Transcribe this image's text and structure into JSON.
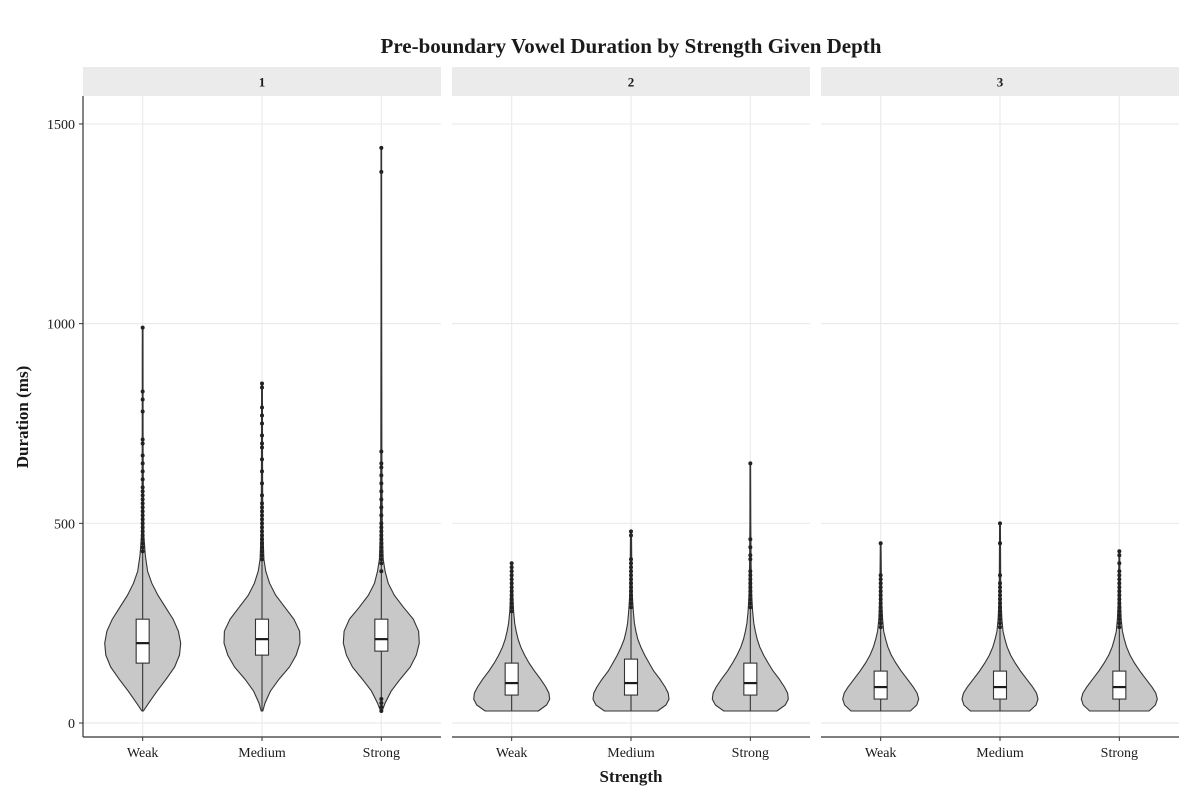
{
  "chart_data": {
    "type": "violin",
    "title": "Pre-boundary Vowel Duration by Strength Given Depth",
    "xlabel": "Strength",
    "ylabel": "Duration (ms)",
    "categories": [
      "Weak",
      "Medium",
      "Strong"
    ],
    "ylim": [
      -35,
      1570
    ],
    "yticks": [
      0,
      500,
      1000,
      1500
    ],
    "grid": true,
    "colors": {
      "violin_fill": "#c8c8c8",
      "outline": "#333333",
      "box_fill": "#ffffff",
      "strip": "#ebebeb",
      "grid": "#ebebeb"
    },
    "facets": [
      {
        "label": "1",
        "groups": [
          {
            "category": "Weak",
            "min": 30,
            "q1": 150,
            "median": 200,
            "q3": 260,
            "whisker_high": 420,
            "max": 990,
            "density": [
              [
                30,
                0.02
              ],
              [
                50,
                0.16
              ],
              [
                80,
                0.38
              ],
              [
                110,
                0.62
              ],
              [
                140,
                0.84
              ],
              [
                170,
                0.97
              ],
              [
                200,
                1.0
              ],
              [
                230,
                0.94
              ],
              [
                260,
                0.8
              ],
              [
                290,
                0.6
              ],
              [
                320,
                0.4
              ],
              [
                350,
                0.24
              ],
              [
                380,
                0.13
              ],
              [
                420,
                0.07
              ],
              [
                470,
                0.03
              ],
              [
                550,
                0.018
              ],
              [
                700,
                0.012
              ],
              [
                990,
                0.01
              ]
            ],
            "outliers": [
              430,
              440,
              450,
              460,
              470,
              480,
              490,
              500,
              510,
              520,
              530,
              540,
              550,
              560,
              570,
              580,
              590,
              610,
              630,
              650,
              670,
              700,
              710,
              780,
              810,
              830,
              990
            ]
          },
          {
            "category": "Medium",
            "min": 30,
            "q1": 170,
            "median": 210,
            "q3": 260,
            "whisker_high": 400,
            "max": 850,
            "density": [
              [
                30,
                0.02
              ],
              [
                50,
                0.08
              ],
              [
                80,
                0.22
              ],
              [
                110,
                0.45
              ],
              [
                140,
                0.72
              ],
              [
                170,
                0.9
              ],
              [
                200,
                1.0
              ],
              [
                230,
                0.99
              ],
              [
                260,
                0.84
              ],
              [
                290,
                0.6
              ],
              [
                320,
                0.36
              ],
              [
                350,
                0.2
              ],
              [
                380,
                0.1
              ],
              [
                410,
                0.05
              ],
              [
                480,
                0.025
              ],
              [
                600,
                0.015
              ],
              [
                850,
                0.01
              ]
            ],
            "outliers": [
              410,
              420,
              430,
              440,
              450,
              460,
              470,
              480,
              490,
              500,
              510,
              520,
              530,
              540,
              550,
              570,
              600,
              630,
              660,
              690,
              700,
              720,
              750,
              770,
              790,
              840,
              850
            ]
          },
          {
            "category": "Strong",
            "min": 30,
            "q1": 180,
            "median": 210,
            "q3": 260,
            "whisker_high": 390,
            "max": 1440,
            "density": [
              [
                30,
                0.02
              ],
              [
                50,
                0.1
              ],
              [
                80,
                0.26
              ],
              [
                110,
                0.5
              ],
              [
                140,
                0.76
              ],
              [
                170,
                0.92
              ],
              [
                200,
                1.0
              ],
              [
                230,
                0.98
              ],
              [
                260,
                0.84
              ],
              [
                290,
                0.58
              ],
              [
                320,
                0.34
              ],
              [
                350,
                0.18
              ],
              [
                380,
                0.1
              ],
              [
                410,
                0.05
              ],
              [
                480,
                0.025
              ],
              [
                650,
                0.015
              ],
              [
                1000,
                0.01
              ],
              [
                1440,
                0.008
              ]
            ],
            "outliers": [
              30,
              40,
              50,
              60,
              380,
              400,
              410,
              420,
              430,
              440,
              450,
              460,
              470,
              480,
              490,
              500,
              520,
              540,
              560,
              580,
              600,
              620,
              640,
              650,
              680,
              1380,
              1440
            ]
          }
        ]
      },
      {
        "label": "2",
        "groups": [
          {
            "category": "Weak",
            "min": 30,
            "q1": 70,
            "median": 100,
            "q3": 150,
            "whisker_high": 265,
            "max": 400,
            "density": [
              [
                30,
                0.7
              ],
              [
                45,
                0.92
              ],
              [
                60,
                1.0
              ],
              [
                75,
                0.98
              ],
              [
                90,
                0.9
              ],
              [
                110,
                0.76
              ],
              [
                130,
                0.6
              ],
              [
                150,
                0.46
              ],
              [
                170,
                0.34
              ],
              [
                190,
                0.24
              ],
              [
                210,
                0.17
              ],
              [
                230,
                0.12
              ],
              [
                250,
                0.08
              ],
              [
                280,
                0.05
              ],
              [
                320,
                0.03
              ],
              [
                360,
                0.02
              ],
              [
                400,
                0.015
              ]
            ],
            "outliers": [
              280,
              290,
              300,
              310,
              320,
              330,
              340,
              350,
              360,
              370,
              380,
              390,
              400
            ]
          },
          {
            "category": "Medium",
            "min": 30,
            "q1": 70,
            "median": 100,
            "q3": 160,
            "whisker_high": 285,
            "max": 480,
            "density": [
              [
                30,
                0.7
              ],
              [
                45,
                0.92
              ],
              [
                60,
                1.0
              ],
              [
                75,
                0.98
              ],
              [
                90,
                0.9
              ],
              [
                110,
                0.76
              ],
              [
                130,
                0.6
              ],
              [
                150,
                0.48
              ],
              [
                170,
                0.36
              ],
              [
                190,
                0.26
              ],
              [
                210,
                0.18
              ],
              [
                230,
                0.13
              ],
              [
                250,
                0.09
              ],
              [
                280,
                0.06
              ],
              [
                320,
                0.035
              ],
              [
                380,
                0.02
              ],
              [
                480,
                0.012
              ]
            ],
            "outliers": [
              290,
              300,
              310,
              320,
              330,
              340,
              350,
              360,
              370,
              380,
              390,
              400,
              410,
              470,
              480
            ]
          },
          {
            "category": "Strong",
            "min": 30,
            "q1": 70,
            "median": 100,
            "q3": 150,
            "whisker_high": 280,
            "max": 650,
            "density": [
              [
                30,
                0.7
              ],
              [
                45,
                0.92
              ],
              [
                60,
                1.0
              ],
              [
                75,
                0.98
              ],
              [
                90,
                0.9
              ],
              [
                110,
                0.76
              ],
              [
                130,
                0.6
              ],
              [
                150,
                0.47
              ],
              [
                170,
                0.35
              ],
              [
                190,
                0.25
              ],
              [
                210,
                0.18
              ],
              [
                230,
                0.13
              ],
              [
                250,
                0.09
              ],
              [
                280,
                0.06
              ],
              [
                320,
                0.035
              ],
              [
                400,
                0.02
              ],
              [
                500,
                0.012
              ],
              [
                650,
                0.008
              ]
            ],
            "outliers": [
              290,
              300,
              310,
              320,
              330,
              340,
              350,
              360,
              370,
              380,
              410,
              420,
              440,
              460,
              650
            ]
          }
        ]
      },
      {
        "label": "3",
        "groups": [
          {
            "category": "Weak",
            "min": 30,
            "q1": 60,
            "median": 90,
            "q3": 130,
            "whisker_high": 230,
            "max": 450,
            "density": [
              [
                30,
                0.78
              ],
              [
                45,
                0.95
              ],
              [
                60,
                1.0
              ],
              [
                75,
                0.96
              ],
              [
                90,
                0.86
              ],
              [
                110,
                0.7
              ],
              [
                130,
                0.54
              ],
              [
                150,
                0.4
              ],
              [
                170,
                0.28
              ],
              [
                190,
                0.19
              ],
              [
                210,
                0.13
              ],
              [
                230,
                0.08
              ],
              [
                260,
                0.05
              ],
              [
                300,
                0.03
              ],
              [
                360,
                0.018
              ],
              [
                450,
                0.01
              ]
            ],
            "outliers": [
              240,
              250,
              260,
              270,
              280,
              290,
              300,
              310,
              320,
              330,
              340,
              350,
              360,
              370,
              450
            ]
          },
          {
            "category": "Medium",
            "min": 30,
            "q1": 60,
            "median": 90,
            "q3": 130,
            "whisker_high": 235,
            "max": 500,
            "density": [
              [
                30,
                0.78
              ],
              [
                45,
                0.95
              ],
              [
                60,
                1.0
              ],
              [
                75,
                0.96
              ],
              [
                90,
                0.86
              ],
              [
                110,
                0.7
              ],
              [
                130,
                0.54
              ],
              [
                150,
                0.4
              ],
              [
                170,
                0.28
              ],
              [
                190,
                0.19
              ],
              [
                210,
                0.13
              ],
              [
                230,
                0.08
              ],
              [
                260,
                0.05
              ],
              [
                300,
                0.03
              ],
              [
                360,
                0.018
              ],
              [
                500,
                0.01
              ]
            ],
            "outliers": [
              240,
              250,
              260,
              270,
              280,
              290,
              300,
              310,
              320,
              330,
              340,
              350,
              370,
              450,
              500
            ]
          },
          {
            "category": "Strong",
            "min": 30,
            "q1": 60,
            "median": 90,
            "q3": 130,
            "whisker_high": 235,
            "max": 430,
            "density": [
              [
                30,
                0.78
              ],
              [
                45,
                0.95
              ],
              [
                60,
                1.0
              ],
              [
                75,
                0.96
              ],
              [
                90,
                0.86
              ],
              [
                110,
                0.7
              ],
              [
                130,
                0.54
              ],
              [
                150,
                0.4
              ],
              [
                170,
                0.28
              ],
              [
                190,
                0.19
              ],
              [
                210,
                0.13
              ],
              [
                230,
                0.08
              ],
              [
                260,
                0.05
              ],
              [
                300,
                0.03
              ],
              [
                360,
                0.018
              ],
              [
                430,
                0.01
              ]
            ],
            "outliers": [
              240,
              250,
              260,
              270,
              280,
              290,
              300,
              310,
              320,
              330,
              340,
              350,
              360,
              370,
              380,
              400,
              420,
              430
            ]
          }
        ]
      }
    ]
  }
}
